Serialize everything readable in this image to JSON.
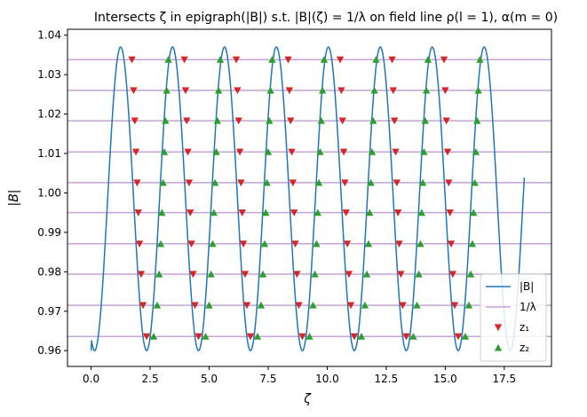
{
  "chart_data": {
    "type": "line",
    "title": "Intersects ζ in epigraph(|B|) s.t. |B|(ζ) = 1/λ on field line ρ(l = 1), α(m = 0)",
    "xlabel": "ζ",
    "ylabel": "|B|",
    "xlim": [
      -1.0,
      19.5
    ],
    "ylim": [
      0.956,
      1.0415
    ],
    "xticks": [
      0.0,
      2.5,
      5.0,
      7.5,
      10.0,
      12.5,
      15.0,
      17.5
    ],
    "xtick_labels": [
      "0.0",
      "2.5",
      "5.0",
      "7.5",
      "10.0",
      "12.5",
      "15.0",
      "17.5"
    ],
    "yticks": [
      0.96,
      0.97,
      0.98,
      0.99,
      1.0,
      1.01,
      1.02,
      1.03,
      1.04
    ],
    "ytick_labels": [
      "0.96",
      "0.97",
      "0.98",
      "0.99",
      "1.00",
      "1.01",
      "1.02",
      "1.03",
      "1.04"
    ],
    "legend_position": "lower right",
    "colors": {
      "B": "#1f77b4",
      "lambda": "#c5a3d6",
      "z1": "#d62728",
      "z2": "#2ca02c"
    },
    "B_curve": {
      "name": "|B|",
      "zeta_range": [
        0.0,
        18.35
      ],
      "B_min": 0.96,
      "B_max": 1.037,
      "period": 2.2,
      "first_peak_zeta": 1.25
    },
    "inv_lambda_levels": [
      0.9636,
      0.9715,
      0.9794,
      0.9871,
      0.995,
      1.0026,
      1.0104,
      1.0183,
      1.026,
      1.0338
    ],
    "z1": {
      "name": "z₁",
      "points": [
        [
          1.73,
          1.0338
        ],
        [
          1.8,
          1.026
        ],
        [
          1.85,
          1.0183
        ],
        [
          1.9,
          1.0104
        ],
        [
          1.95,
          1.0026
        ],
        [
          2.0,
          0.995
        ],
        [
          2.05,
          0.9871
        ],
        [
          2.12,
          0.9794
        ],
        [
          2.2,
          0.9715
        ],
        [
          2.35,
          0.9636
        ],
        [
          3.95,
          1.0338
        ],
        [
          4.0,
          1.026
        ],
        [
          4.05,
          1.0183
        ],
        [
          4.1,
          1.0104
        ],
        [
          4.15,
          1.0026
        ],
        [
          4.2,
          0.995
        ],
        [
          4.25,
          0.9871
        ],
        [
          4.32,
          0.9794
        ],
        [
          4.4,
          0.9715
        ],
        [
          4.55,
          0.9636
        ],
        [
          6.15,
          1.0338
        ],
        [
          6.2,
          1.026
        ],
        [
          6.25,
          1.0183
        ],
        [
          6.3,
          1.0104
        ],
        [
          6.35,
          1.0026
        ],
        [
          6.4,
          0.995
        ],
        [
          6.45,
          0.9871
        ],
        [
          6.52,
          0.9794
        ],
        [
          6.6,
          0.9715
        ],
        [
          6.75,
          0.9636
        ],
        [
          8.35,
          1.0338
        ],
        [
          8.4,
          1.026
        ],
        [
          8.45,
          1.0183
        ],
        [
          8.5,
          1.0104
        ],
        [
          8.55,
          1.0026
        ],
        [
          8.6,
          0.995
        ],
        [
          8.65,
          0.9871
        ],
        [
          8.72,
          0.9794
        ],
        [
          8.8,
          0.9715
        ],
        [
          8.95,
          0.9636
        ],
        [
          10.55,
          1.0338
        ],
        [
          10.6,
          1.026
        ],
        [
          10.65,
          1.0183
        ],
        [
          10.7,
          1.0104
        ],
        [
          10.75,
          1.0026
        ],
        [
          10.8,
          0.995
        ],
        [
          10.85,
          0.9871
        ],
        [
          10.92,
          0.9794
        ],
        [
          11.0,
          0.9715
        ],
        [
          11.15,
          0.9636
        ],
        [
          12.75,
          1.0338
        ],
        [
          12.8,
          1.026
        ],
        [
          12.85,
          1.0183
        ],
        [
          12.9,
          1.0104
        ],
        [
          12.95,
          1.0026
        ],
        [
          13.0,
          0.995
        ],
        [
          13.05,
          0.9871
        ],
        [
          13.12,
          0.9794
        ],
        [
          13.2,
          0.9715
        ],
        [
          13.35,
          0.9636
        ],
        [
          14.95,
          1.0338
        ],
        [
          15.0,
          1.026
        ],
        [
          15.05,
          1.0183
        ],
        [
          15.1,
          1.0104
        ],
        [
          15.15,
          1.0026
        ],
        [
          15.2,
          0.995
        ],
        [
          15.25,
          0.9871
        ],
        [
          15.32,
          0.9794
        ],
        [
          15.4,
          0.9715
        ],
        [
          15.55,
          0.9636
        ]
      ]
    },
    "z2": {
      "name": "z₂",
      "points": [
        [
          2.65,
          0.9636
        ],
        [
          2.8,
          0.9715
        ],
        [
          2.88,
          0.9794
        ],
        [
          2.95,
          0.9871
        ],
        [
          3.0,
          0.995
        ],
        [
          3.05,
          1.0026
        ],
        [
          3.1,
          1.0104
        ],
        [
          3.15,
          1.0183
        ],
        [
          3.2,
          1.026
        ],
        [
          3.27,
          1.0338
        ],
        [
          4.85,
          0.9636
        ],
        [
          5.0,
          0.9715
        ],
        [
          5.08,
          0.9794
        ],
        [
          5.15,
          0.9871
        ],
        [
          5.2,
          0.995
        ],
        [
          5.25,
          1.0026
        ],
        [
          5.3,
          1.0104
        ],
        [
          5.35,
          1.0183
        ],
        [
          5.4,
          1.026
        ],
        [
          5.47,
          1.0338
        ],
        [
          7.05,
          0.9636
        ],
        [
          7.2,
          0.9715
        ],
        [
          7.28,
          0.9794
        ],
        [
          7.35,
          0.9871
        ],
        [
          7.4,
          0.995
        ],
        [
          7.45,
          1.0026
        ],
        [
          7.5,
          1.0104
        ],
        [
          7.55,
          1.0183
        ],
        [
          7.6,
          1.026
        ],
        [
          7.67,
          1.0338
        ],
        [
          9.25,
          0.9636
        ],
        [
          9.4,
          0.9715
        ],
        [
          9.48,
          0.9794
        ],
        [
          9.55,
          0.9871
        ],
        [
          9.6,
          0.995
        ],
        [
          9.65,
          1.0026
        ],
        [
          9.7,
          1.0104
        ],
        [
          9.75,
          1.0183
        ],
        [
          9.8,
          1.026
        ],
        [
          9.87,
          1.0338
        ],
        [
          11.45,
          0.9636
        ],
        [
          11.6,
          0.9715
        ],
        [
          11.68,
          0.9794
        ],
        [
          11.75,
          0.9871
        ],
        [
          11.8,
          0.995
        ],
        [
          11.85,
          1.0026
        ],
        [
          11.9,
          1.0104
        ],
        [
          11.95,
          1.0183
        ],
        [
          12.0,
          1.026
        ],
        [
          12.07,
          1.0338
        ],
        [
          13.65,
          0.9636
        ],
        [
          13.8,
          0.9715
        ],
        [
          13.88,
          0.9794
        ],
        [
          13.95,
          0.9871
        ],
        [
          14.0,
          0.995
        ],
        [
          14.05,
          1.0026
        ],
        [
          14.1,
          1.0104
        ],
        [
          14.15,
          1.0183
        ],
        [
          14.2,
          1.026
        ],
        [
          14.27,
          1.0338
        ],
        [
          15.85,
          0.9636
        ],
        [
          16.0,
          0.9715
        ],
        [
          16.08,
          0.9794
        ],
        [
          16.15,
          0.9871
        ],
        [
          16.2,
          0.995
        ],
        [
          16.25,
          1.0026
        ],
        [
          16.3,
          1.0104
        ],
        [
          16.35,
          1.0183
        ],
        [
          16.4,
          1.026
        ],
        [
          16.47,
          1.0338
        ]
      ]
    },
    "legend": [
      {
        "key": "B",
        "label": "|B|"
      },
      {
        "key": "lambda",
        "label": "1/λ"
      },
      {
        "key": "z1",
        "label": "z₁"
      },
      {
        "key": "z2",
        "label": "z₂"
      }
    ]
  }
}
